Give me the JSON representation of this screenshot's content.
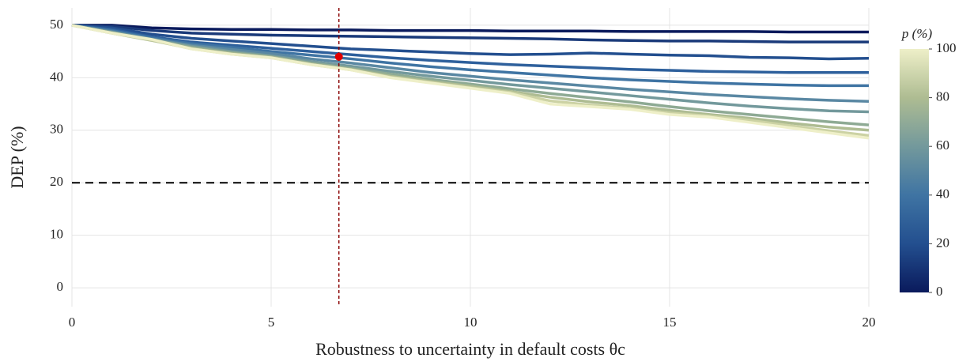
{
  "chart_data": {
    "type": "line",
    "x_label": "Robustness to uncertainty in default costs θc",
    "y_label": "DEP (%)",
    "x": [
      0,
      1,
      2,
      3,
      4,
      5,
      6,
      7,
      8,
      9,
      10,
      11,
      12,
      13,
      14,
      15,
      16,
      17,
      18,
      19,
      20
    ],
    "xlim": [
      0,
      20
    ],
    "xticks": [
      0,
      5,
      10,
      15,
      20
    ],
    "ylim": [
      -3.6,
      53.3
    ],
    "yticks": [
      0,
      10,
      20,
      30,
      40,
      50
    ],
    "grid": true,
    "hline": 20,
    "vline": 6.7,
    "point": [
      6.7,
      44
    ],
    "colorbar_label": "p (%)",
    "clim": [
      0,
      100
    ],
    "cticks": [
      0,
      20,
      40,
      60,
      80,
      100
    ],
    "colormap": [
      "#0a1a5c",
      "#234f8f",
      "#3f74a3",
      "#73999c",
      "#aebc92",
      "#eeefc8"
    ],
    "series": [
      {
        "color": "#0a1a5c",
        "values": [
          50,
          50,
          49.5,
          49.3,
          49.2,
          49.2,
          49.1,
          49.1,
          49,
          49,
          49,
          48.9,
          48.9,
          48.9,
          48.8,
          48.8,
          48.8,
          48.8,
          48.7,
          48.7,
          48.7
        ]
      },
      {
        "color": "#1a3a7a",
        "values": [
          50,
          49.8,
          49,
          48.5,
          48.3,
          48.1,
          48,
          47.9,
          47.8,
          47.7,
          47.6,
          47.5,
          47.4,
          47.2,
          47.1,
          47,
          47,
          46.9,
          46.8,
          46.8,
          46.8
        ]
      },
      {
        "color": "#234f8f",
        "values": [
          50,
          49.5,
          48.3,
          47.5,
          47,
          46.5,
          46,
          45.5,
          45.2,
          44.9,
          44.6,
          44.4,
          44.5,
          44.7,
          44.5,
          44.3,
          44.2,
          43.9,
          43.8,
          43.6,
          43.7
        ]
      },
      {
        "color": "#2e609c",
        "values": [
          50,
          49.2,
          47.8,
          46.8,
          46.2,
          45.6,
          45,
          44.4,
          43.8,
          43.3,
          42.9,
          42.5,
          42.2,
          41.9,
          41.6,
          41.4,
          41.2,
          41.1,
          41,
          41,
          41
        ]
      },
      {
        "color": "#3f74a3",
        "values": [
          50,
          49,
          47.6,
          46.5,
          45.8,
          45,
          44.3,
          43.6,
          42.8,
          42.1,
          41.5,
          41,
          40.5,
          40,
          39.6,
          39.3,
          39,
          38.8,
          38.6,
          38.5,
          38.5
        ]
      },
      {
        "color": "#5a88a3",
        "values": [
          50,
          48.8,
          47.4,
          46.2,
          45.4,
          44.6,
          43.6,
          42.8,
          41.9,
          41,
          40.3,
          39.6,
          39,
          38.4,
          37.8,
          37.3,
          36.8,
          36.4,
          36,
          35.7,
          35.5
        ]
      },
      {
        "color": "#73999c",
        "values": [
          50,
          48.7,
          47.3,
          46,
          45,
          44.2,
          43.1,
          42.2,
          41.2,
          40.3,
          39.5,
          38.7,
          38,
          37.3,
          36.6,
          35.9,
          35.2,
          34.6,
          34.1,
          33.7,
          33.5
        ]
      },
      {
        "color": "#8eaa94",
        "values": [
          50,
          48.6,
          47.2,
          45.8,
          44.8,
          44,
          42.8,
          41.8,
          40.7,
          39.7,
          38.8,
          37.9,
          37,
          36.2,
          35.4,
          34.5,
          33.7,
          33,
          32.3,
          31.6,
          31
        ]
      },
      {
        "color": "#aebc92",
        "values": [
          50,
          48.5,
          47.1,
          45.6,
          44.6,
          43.9,
          42.6,
          41.6,
          40.3,
          39.3,
          38.4,
          37.4,
          36.3,
          35.4,
          34.7,
          33.8,
          33,
          32.3,
          31.4,
          30.6,
          30
        ]
      },
      {
        "color": "#ccd2a4",
        "values": [
          50,
          48.5,
          47.2,
          45.5,
          44.5,
          43.8,
          42.5,
          41.5,
          40.1,
          39.1,
          38.1,
          37.2,
          35.6,
          34.8,
          34.2,
          33.3,
          32.7,
          31.9,
          30.9,
          29.9,
          29
        ]
      },
      {
        "color": "#eeefc8",
        "values": [
          50,
          48.5,
          47.3,
          45.5,
          44.5,
          43.8,
          42.5,
          41.5,
          40,
          39,
          38,
          37,
          35,
          34.5,
          34,
          33,
          32.5,
          31.5,
          30.5,
          29.5,
          28.5
        ]
      }
    ]
  }
}
